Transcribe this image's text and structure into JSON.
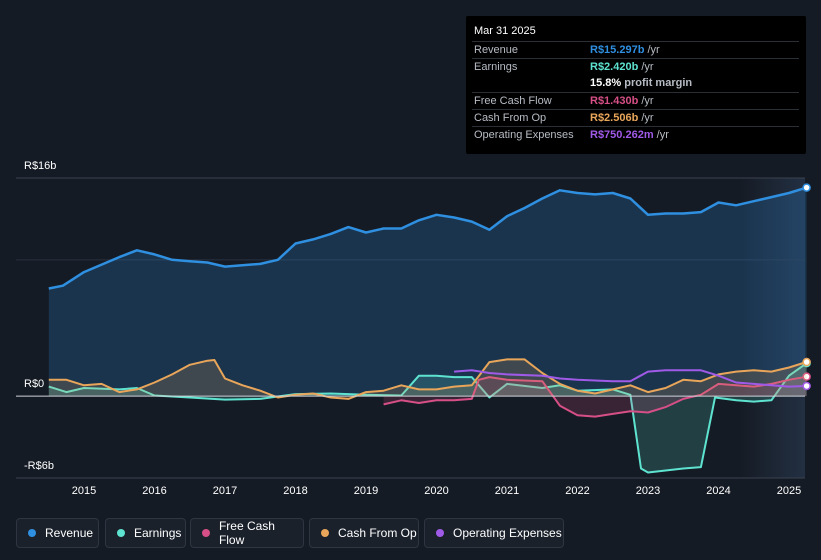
{
  "tooltip": {
    "date": "Mar 31 2025",
    "rows": [
      {
        "label": "Revenue",
        "value": "R$15.297b",
        "unit": "/yr",
        "color": "#2f8fe0"
      },
      {
        "label": "Earnings",
        "value": "R$2.420b",
        "unit": "/yr",
        "color": "#5ee3d0"
      },
      {
        "label": "",
        "value": "15.8%",
        "unit": "profit margin",
        "color": "#ffffff"
      },
      {
        "label": "Free Cash Flow",
        "value": "R$1.430b",
        "unit": "/yr",
        "color": "#d64f86"
      },
      {
        "label": "Cash From Op",
        "value": "R$2.506b",
        "unit": "/yr",
        "color": "#e9a65a"
      },
      {
        "label": "Operating Expenses",
        "value": "R$750.262m",
        "unit": "/yr",
        "color": "#a05ae8"
      }
    ]
  },
  "chart_data": {
    "type": "line",
    "ylim": [
      -6,
      16
    ],
    "y_tick_labels": [
      "R$16b",
      "R$0",
      "-R$6b"
    ],
    "x_ticks": [
      "2015",
      "2016",
      "2017",
      "2018",
      "2019",
      "2020",
      "2021",
      "2022",
      "2023",
      "2024",
      "2025"
    ],
    "units": "R$ billions",
    "forecast_shading_from": 2024.3,
    "series": [
      {
        "name": "Revenue",
        "color": "#2f8fe0",
        "fill": true,
        "points": [
          [
            2014.5,
            7.9
          ],
          [
            2014.7,
            8.1
          ],
          [
            2015.0,
            9.1
          ],
          [
            2015.5,
            10.2
          ],
          [
            2015.75,
            10.7
          ],
          [
            2016.0,
            10.4
          ],
          [
            2016.25,
            10.0
          ],
          [
            2016.5,
            9.9
          ],
          [
            2016.75,
            9.8
          ],
          [
            2017.0,
            9.5
          ],
          [
            2017.5,
            9.7
          ],
          [
            2017.75,
            10.0
          ],
          [
            2018.0,
            11.2
          ],
          [
            2018.25,
            11.5
          ],
          [
            2018.5,
            11.9
          ],
          [
            2018.75,
            12.4
          ],
          [
            2019.0,
            12.0
          ],
          [
            2019.25,
            12.3
          ],
          [
            2019.5,
            12.3
          ],
          [
            2019.75,
            12.9
          ],
          [
            2020.0,
            13.3
          ],
          [
            2020.25,
            13.1
          ],
          [
            2020.5,
            12.8
          ],
          [
            2020.75,
            12.2
          ],
          [
            2021.0,
            13.2
          ],
          [
            2021.25,
            13.8
          ],
          [
            2021.5,
            14.5
          ],
          [
            2021.75,
            15.1
          ],
          [
            2022.0,
            14.9
          ],
          [
            2022.25,
            14.8
          ],
          [
            2022.5,
            14.9
          ],
          [
            2022.75,
            14.5
          ],
          [
            2023.0,
            13.3
          ],
          [
            2023.25,
            13.4
          ],
          [
            2023.5,
            13.4
          ],
          [
            2023.75,
            13.5
          ],
          [
            2024.0,
            14.2
          ],
          [
            2024.25,
            14.0
          ],
          [
            2024.5,
            14.3
          ],
          [
            2024.75,
            14.6
          ],
          [
            2025.0,
            14.9
          ],
          [
            2025.25,
            15.297
          ]
        ]
      },
      {
        "name": "Earnings",
        "color": "#5ee3d0",
        "fill": true,
        "points": [
          [
            2014.5,
            0.7
          ],
          [
            2014.75,
            0.3
          ],
          [
            2015.0,
            0.6
          ],
          [
            2015.5,
            0.5
          ],
          [
            2015.75,
            0.6
          ],
          [
            2016.0,
            0.05
          ],
          [
            2016.5,
            -0.1
          ],
          [
            2017.0,
            -0.25
          ],
          [
            2017.5,
            -0.2
          ],
          [
            2018.0,
            0.15
          ],
          [
            2018.5,
            0.2
          ],
          [
            2019.0,
            0.1
          ],
          [
            2019.5,
            0.05
          ],
          [
            2019.75,
            1.5
          ],
          [
            2020.0,
            1.5
          ],
          [
            2020.25,
            1.4
          ],
          [
            2020.5,
            1.4
          ],
          [
            2020.75,
            -0.1
          ],
          [
            2021.0,
            0.9
          ],
          [
            2021.5,
            0.6
          ],
          [
            2021.75,
            0.8
          ],
          [
            2022.0,
            0.4
          ],
          [
            2022.5,
            0.5
          ],
          [
            2022.75,
            0.1
          ],
          [
            2022.9,
            -5.3
          ],
          [
            2023.0,
            -5.6
          ],
          [
            2023.5,
            -5.3
          ],
          [
            2023.75,
            -5.2
          ],
          [
            2023.95,
            -0.1
          ],
          [
            2024.25,
            -0.3
          ],
          [
            2024.5,
            -0.4
          ],
          [
            2024.75,
            -0.3
          ],
          [
            2025.0,
            1.5
          ],
          [
            2025.25,
            2.42
          ]
        ]
      },
      {
        "name": "Free Cash Flow",
        "color": "#d64f86",
        "fill": true,
        "points": [
          [
            2019.25,
            -0.6
          ],
          [
            2019.5,
            -0.3
          ],
          [
            2019.75,
            -0.5
          ],
          [
            2020.0,
            -0.3
          ],
          [
            2020.25,
            -0.3
          ],
          [
            2020.5,
            -0.2
          ],
          [
            2020.6,
            1.2
          ],
          [
            2020.75,
            1.4
          ],
          [
            2021.0,
            1.2
          ],
          [
            2021.5,
            1.1
          ],
          [
            2021.75,
            -0.7
          ],
          [
            2022.0,
            -1.4
          ],
          [
            2022.25,
            -1.5
          ],
          [
            2022.5,
            -1.3
          ],
          [
            2022.75,
            -1.1
          ],
          [
            2023.0,
            -1.2
          ],
          [
            2023.25,
            -0.8
          ],
          [
            2023.5,
            -0.2
          ],
          [
            2023.75,
            0.1
          ],
          [
            2024.0,
            0.9
          ],
          [
            2024.25,
            0.8
          ],
          [
            2024.5,
            0.7
          ],
          [
            2024.75,
            0.9
          ],
          [
            2025.0,
            1.2
          ],
          [
            2025.25,
            1.43
          ]
        ]
      },
      {
        "name": "Cash From Op",
        "color": "#e9a65a",
        "fill": true,
        "points": [
          [
            2014.5,
            1.2
          ],
          [
            2014.75,
            1.2
          ],
          [
            2015.0,
            0.8
          ],
          [
            2015.25,
            0.9
          ],
          [
            2015.5,
            0.3
          ],
          [
            2015.75,
            0.5
          ],
          [
            2016.0,
            1.0
          ],
          [
            2016.25,
            1.6
          ],
          [
            2016.5,
            2.3
          ],
          [
            2016.75,
            2.6
          ],
          [
            2016.85,
            2.65
          ],
          [
            2017.0,
            1.3
          ],
          [
            2017.25,
            0.8
          ],
          [
            2017.5,
            0.4
          ],
          [
            2017.75,
            -0.1
          ],
          [
            2018.0,
            0.1
          ],
          [
            2018.25,
            0.2
          ],
          [
            2018.5,
            -0.1
          ],
          [
            2018.75,
            -0.2
          ],
          [
            2019.0,
            0.3
          ],
          [
            2019.25,
            0.4
          ],
          [
            2019.5,
            0.8
          ],
          [
            2019.75,
            0.5
          ],
          [
            2020.0,
            0.5
          ],
          [
            2020.25,
            0.7
          ],
          [
            2020.5,
            0.8
          ],
          [
            2020.75,
            2.5
          ],
          [
            2021.0,
            2.7
          ],
          [
            2021.25,
            2.7
          ],
          [
            2021.5,
            1.7
          ],
          [
            2021.75,
            0.9
          ],
          [
            2022.0,
            0.4
          ],
          [
            2022.25,
            0.2
          ],
          [
            2022.5,
            0.5
          ],
          [
            2022.75,
            0.8
          ],
          [
            2023.0,
            0.3
          ],
          [
            2023.25,
            0.6
          ],
          [
            2023.5,
            1.2
          ],
          [
            2023.75,
            1.1
          ],
          [
            2024.0,
            1.6
          ],
          [
            2024.25,
            1.8
          ],
          [
            2024.5,
            1.9
          ],
          [
            2024.75,
            1.8
          ],
          [
            2025.0,
            2.1
          ],
          [
            2025.25,
            2.506
          ]
        ]
      },
      {
        "name": "Operating Expenses",
        "color": "#a05ae8",
        "fill": false,
        "points": [
          [
            2020.25,
            1.8
          ],
          [
            2020.5,
            1.9
          ],
          [
            2020.75,
            1.7
          ],
          [
            2021.0,
            1.6
          ],
          [
            2021.5,
            1.5
          ],
          [
            2021.75,
            1.3
          ],
          [
            2022.0,
            1.2
          ],
          [
            2022.5,
            1.1
          ],
          [
            2022.75,
            1.1
          ],
          [
            2023.0,
            1.8
          ],
          [
            2023.25,
            1.9
          ],
          [
            2023.5,
            1.9
          ],
          [
            2023.75,
            1.9
          ],
          [
            2024.0,
            1.5
          ],
          [
            2024.25,
            1.0
          ],
          [
            2024.5,
            0.9
          ],
          [
            2024.75,
            0.8
          ],
          [
            2025.0,
            0.7
          ],
          [
            2025.25,
            0.75
          ]
        ]
      }
    ]
  },
  "legend": [
    {
      "label": "Revenue",
      "color": "#2f8fe0"
    },
    {
      "label": "Earnings",
      "color": "#5ee3d0"
    },
    {
      "label": "Free Cash Flow",
      "color": "#d64f86"
    },
    {
      "label": "Cash From Op",
      "color": "#e9a65a"
    },
    {
      "label": "Operating Expenses",
      "color": "#a05ae8"
    }
  ]
}
